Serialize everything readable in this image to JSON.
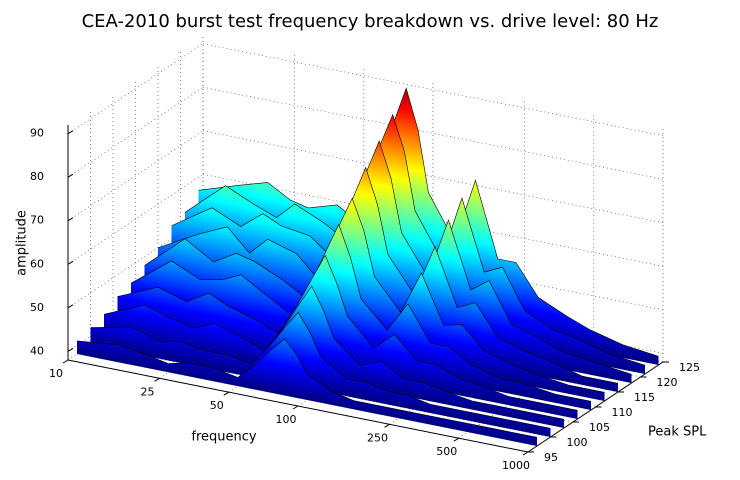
{
  "chart_data": {
    "type": "waterfall",
    "title": "CEA-2010 burst test frequency breakdown vs. drive level: 80 Hz",
    "xlabel": "frequency",
    "ylabel": "Peak SPL",
    "zlabel": "amplitude",
    "xscale": "log",
    "xlim": [
      10,
      1000
    ],
    "xticks": [
      10,
      25,
      50,
      100,
      250,
      500,
      1000
    ],
    "ylim": [
      95,
      125
    ],
    "yticks": [
      95,
      100,
      105,
      110,
      115,
      120,
      125
    ],
    "zlim": [
      38,
      92
    ],
    "zticks": [
      40,
      50,
      60,
      70,
      80,
      90
    ],
    "grid": true,
    "colormap": "jet",
    "x": [
      10,
      15,
      20,
      25,
      30,
      40,
      50,
      60,
      70,
      80,
      90,
      100,
      130,
      160,
      200,
      240,
      300,
      400,
      500,
      700,
      1000
    ],
    "y": [
      97,
      100,
      103,
      106,
      109,
      112,
      115,
      118,
      121,
      124
    ],
    "values": [
      [
        41,
        42,
        41,
        40,
        41,
        41,
        40,
        44,
        48,
        51,
        48,
        44,
        41,
        40,
        40,
        40,
        40,
        40,
        40,
        40,
        40
      ],
      [
        42,
        44,
        42,
        43,
        42,
        42,
        41,
        46,
        51,
        55,
        51,
        46,
        42,
        42,
        41,
        41,
        40,
        40,
        40,
        40,
        40
      ],
      [
        43,
        47,
        45,
        44,
        46,
        44,
        42,
        48,
        54,
        59,
        54,
        48,
        43,
        45,
        42,
        42,
        41,
        40,
        40,
        40,
        40
      ],
      [
        45,
        49,
        47,
        50,
        48,
        46,
        44,
        51,
        58,
        64,
        58,
        51,
        45,
        49,
        44,
        44,
        42,
        41,
        40,
        40,
        40
      ],
      [
        46,
        53,
        50,
        51,
        53,
        49,
        46,
        54,
        62,
        69,
        62,
        53,
        47,
        54,
        46,
        46,
        43,
        41,
        41,
        40,
        40
      ],
      [
        48,
        56,
        52,
        55,
        54,
        51,
        48,
        57,
        66,
        73,
        66,
        56,
        49,
        59,
        48,
        49,
        44,
        42,
        41,
        40,
        40
      ],
      [
        50,
        55,
        58,
        53,
        57,
        55,
        50,
        60,
        70,
        78,
        70,
        59,
        51,
        63,
        50,
        52,
        45,
        43,
        42,
        40,
        40
      ],
      [
        53,
        59,
        56,
        60,
        58,
        57,
        53,
        63,
        74,
        82,
        74,
        62,
        53,
        67,
        52,
        55,
        46,
        44,
        42,
        41,
        40
      ],
      [
        54,
        62,
        59,
        57,
        61,
        58,
        55,
        66,
        78,
        86,
        78,
        65,
        55,
        70,
        54,
        56,
        47,
        44,
        43,
        41,
        40
      ],
      [
        57,
        60,
        62,
        59,
        58,
        60,
        57,
        68,
        81,
        90,
        81,
        67,
        57,
        72,
        55,
        55,
        48,
        45,
        43,
        41,
        40
      ]
    ]
  }
}
